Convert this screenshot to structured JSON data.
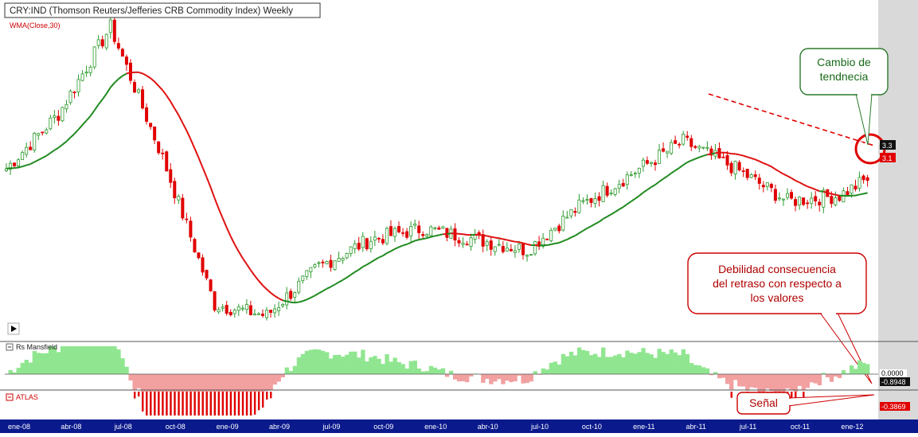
{
  "header": {
    "title": "CRY:IND (Thomson Reuters/Jefferies CRB Commodity Index) Weekly",
    "indicator_label": "WMA(Close,30)"
  },
  "panels": {
    "rs_label": "Rs Mansfield",
    "atlas_label": "ATLAS",
    "rs_values": [
      "0.0000",
      "-0.8948"
    ],
    "atlas_value": "-0.3869",
    "price_tags": [
      "3.3",
      "3.1"
    ]
  },
  "annotations": {
    "cambio": [
      "Cambio de",
      "tendnecia"
    ],
    "debilidad": [
      "Debilidad consecuencia",
      "del retraso con respecto a",
      "los valores"
    ],
    "senal": "Señal"
  },
  "colors": {
    "up": "#2e9a2e",
    "down": "#e00000",
    "wma_bull": "#1f8a1f",
    "wma_bear": "#e01010",
    "rs_pos": "#90e690",
    "rs_neg": "#f2a0a0",
    "axis_bg": "#0a1a8c",
    "callout_green_border": "#2a7a2a",
    "callout_red_border": "#cc0000",
    "right_margin": "#d9d9d9"
  },
  "chart_data": {
    "type": "candlestick",
    "x_axis_labels": [
      "ene-08",
      "abr-08",
      "jul-08",
      "oct-08",
      "ene-09",
      "abr-09",
      "jul-09",
      "oct-09",
      "ene-10",
      "abr-10",
      "jul-10",
      "oct-10",
      "ene-11",
      "abr-11",
      "jul-11",
      "oct-11",
      "ene-12"
    ],
    "trend_anchors": [
      {
        "date": "ene-08",
        "close": 340
      },
      {
        "date": "abr-08",
        "close": 390
      },
      {
        "date": "jul-08",
        "close": 470
      },
      {
        "date": "oct-08",
        "close": 350
      },
      {
        "date": "ene-09",
        "close": 215
      },
      {
        "date": "abr-09",
        "close": 205
      },
      {
        "date": "jul-09",
        "close": 250
      },
      {
        "date": "oct-09",
        "close": 275
      },
      {
        "date": "ene-10",
        "close": 285
      },
      {
        "date": "abr-10",
        "close": 275
      },
      {
        "date": "jul-10",
        "close": 265
      },
      {
        "date": "oct-10",
        "close": 305
      },
      {
        "date": "ene-11",
        "close": 335
      },
      {
        "date": "abr-11",
        "close": 365
      },
      {
        "date": "jul-11",
        "close": 340
      },
      {
        "date": "oct-11",
        "close": 310
      },
      {
        "date": "ene-12",
        "close": 315
      }
    ],
    "wma_period": 30
  }
}
